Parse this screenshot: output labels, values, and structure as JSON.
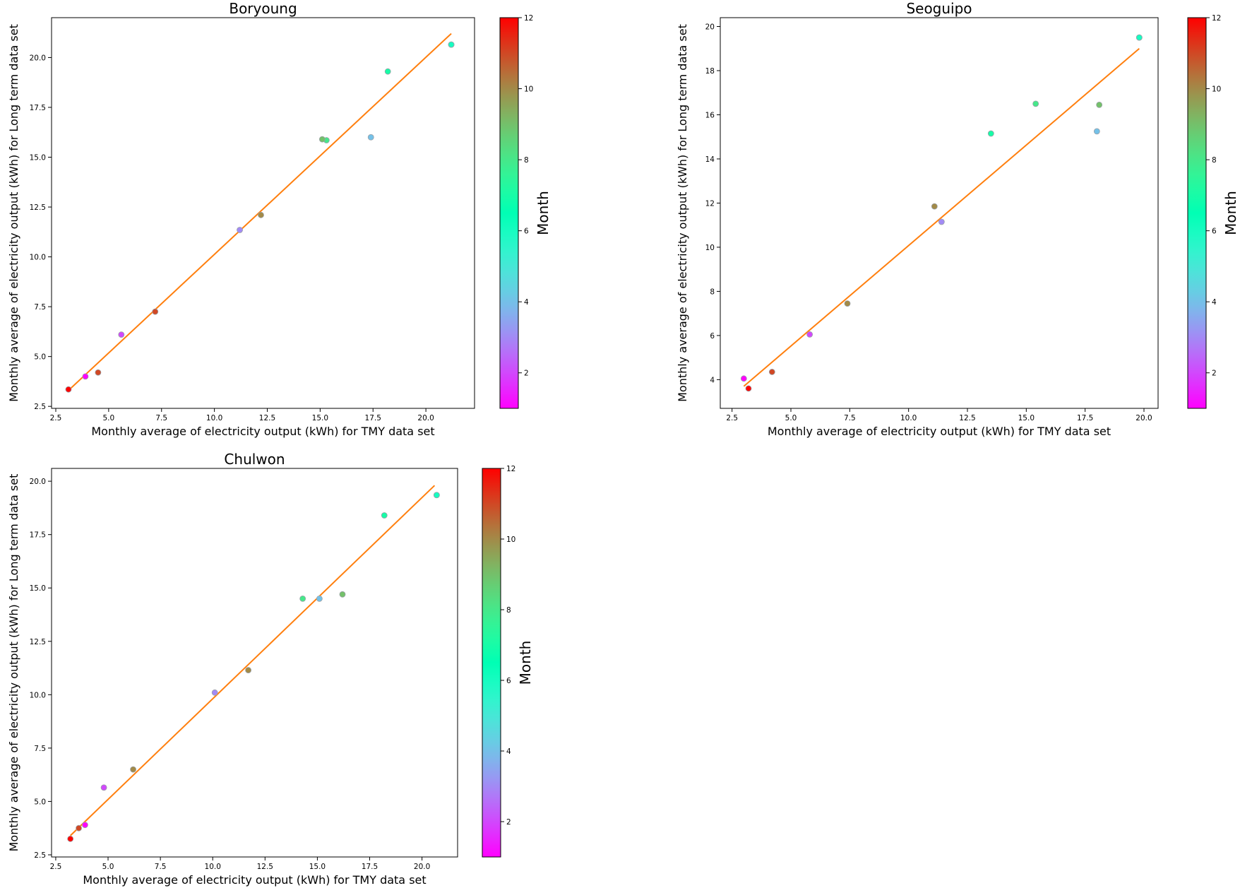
{
  "chart_data": [
    {
      "type": "scatter",
      "title": "Boryoung",
      "xlabel": "Monthly average of electricity output (kWh) for TMY data set",
      "ylabel": "Monthly average of electricity output (kWh) for Long term data set",
      "xlim": [
        2.3,
        22.3
      ],
      "ylim": [
        2.4,
        22.0
      ],
      "xticks": [
        2.5,
        5.0,
        7.5,
        10.0,
        12.5,
        15.0,
        17.5,
        20.0
      ],
      "yticks": [
        2.5,
        5.0,
        7.5,
        10.0,
        12.5,
        15.0,
        17.5,
        20.0
      ],
      "grid": false,
      "colorbar": {
        "label": "Month",
        "range": [
          1,
          12
        ],
        "ticks": [
          2,
          4,
          6,
          8,
          10,
          12
        ]
      },
      "fit_line": {
        "color": "#ff7f0e",
        "x": [
          3.1,
          21.2
        ],
        "y": [
          3.3,
          21.2
        ]
      },
      "points": [
        {
          "month": 1,
          "x": 3.9,
          "y": 4.0
        },
        {
          "month": 2,
          "x": 5.6,
          "y": 6.1
        },
        {
          "month": 3,
          "x": 11.2,
          "y": 11.35
        },
        {
          "month": 4,
          "x": 17.4,
          "y": 16.0
        },
        {
          "month": 5,
          "x": 21.2,
          "y": 20.65
        },
        {
          "month": 6,
          "x": 21.2,
          "y": 20.65
        },
        {
          "month": 7,
          "x": 18.2,
          "y": 19.3
        },
        {
          "month": 8,
          "x": 15.3,
          "y": 15.85
        },
        {
          "month": 9,
          "x": 15.1,
          "y": 15.9
        },
        {
          "month": 10,
          "x": 12.2,
          "y": 12.1
        },
        {
          "month": 11,
          "x": 7.2,
          "y": 7.25
        },
        {
          "month": 12,
          "x": 3.1,
          "y": 3.35
        },
        {
          "month": 11,
          "x": 4.5,
          "y": 4.2
        }
      ]
    },
    {
      "type": "scatter",
      "title": "Seoguipo",
      "xlabel": "Monthly average of electricity output (kWh) for TMY data set",
      "ylabel": "Monthly average of electricity output (kWh) for Long term data set",
      "xlim": [
        2.0,
        20.6
      ],
      "ylim": [
        2.7,
        20.4
      ],
      "xticks": [
        2.5,
        5.0,
        7.5,
        10.0,
        12.5,
        15.0,
        17.5,
        20.0
      ],
      "yticks": [
        4,
        6,
        8,
        10,
        12,
        14,
        16,
        18,
        20
      ],
      "grid": false,
      "colorbar": {
        "label": "Month",
        "range": [
          1,
          12
        ],
        "ticks": [
          2,
          4,
          6,
          8,
          10,
          12
        ]
      },
      "fit_line": {
        "color": "#ff7f0e",
        "x": [
          3.0,
          19.8
        ],
        "y": [
          3.7,
          19.0
        ]
      },
      "points": [
        {
          "month": 1,
          "x": 3.0,
          "y": 4.05
        },
        {
          "month": 2,
          "x": 5.8,
          "y": 6.05
        },
        {
          "month": 3,
          "x": 11.4,
          "y": 11.15
        },
        {
          "month": 4,
          "x": 18.0,
          "y": 15.25
        },
        {
          "month": 5,
          "x": 19.8,
          "y": 19.5
        },
        {
          "month": 6,
          "x": 19.8,
          "y": 19.5
        },
        {
          "month": 7,
          "x": 13.5,
          "y": 15.15
        },
        {
          "month": 8,
          "x": 15.4,
          "y": 16.5
        },
        {
          "month": 9,
          "x": 18.1,
          "y": 16.45
        },
        {
          "month": 10,
          "x": 11.1,
          "y": 11.85
        },
        {
          "month": 10,
          "x": 7.4,
          "y": 7.45
        },
        {
          "month": 11,
          "x": 4.2,
          "y": 4.35
        },
        {
          "month": 12,
          "x": 3.2,
          "y": 3.6
        }
      ]
    },
    {
      "type": "scatter",
      "title": "Chulwon",
      "xlabel": "Monthly average of electricity output (kWh) for TMY data set",
      "ylabel": "Monthly average of electricity output (kWh) for Long term data set",
      "xlim": [
        2.3,
        21.7
      ],
      "ylim": [
        2.4,
        20.6
      ],
      "xticks": [
        2.5,
        5.0,
        7.5,
        10.0,
        12.5,
        15.0,
        17.5,
        20.0
      ],
      "yticks": [
        2.5,
        5.0,
        7.5,
        10.0,
        12.5,
        15.0,
        17.5,
        20.0
      ],
      "grid": false,
      "colorbar": {
        "label": "Month",
        "range": [
          1,
          12
        ],
        "ticks": [
          2,
          4,
          6,
          8,
          10,
          12
        ]
      },
      "fit_line": {
        "color": "#ff7f0e",
        "x": [
          3.2,
          20.6
        ],
        "y": [
          3.4,
          19.8
        ]
      },
      "points": [
        {
          "month": 1,
          "x": 3.9,
          "y": 3.9
        },
        {
          "month": 2,
          "x": 4.8,
          "y": 5.65
        },
        {
          "month": 3,
          "x": 10.1,
          "y": 10.1
        },
        {
          "month": 4,
          "x": 15.1,
          "y": 14.5
        },
        {
          "month": 5,
          "x": 20.7,
          "y": 19.35
        },
        {
          "month": 6,
          "x": 20.7,
          "y": 19.35
        },
        {
          "month": 7,
          "x": 18.2,
          "y": 18.4
        },
        {
          "month": 8,
          "x": 14.3,
          "y": 14.5
        },
        {
          "month": 9,
          "x": 16.2,
          "y": 14.7
        },
        {
          "month": 10,
          "x": 11.7,
          "y": 11.15
        },
        {
          "month": 10,
          "x": 6.2,
          "y": 6.5
        },
        {
          "month": 11,
          "x": 3.6,
          "y": 3.75
        },
        {
          "month": 12,
          "x": 3.2,
          "y": 3.25
        }
      ]
    }
  ]
}
